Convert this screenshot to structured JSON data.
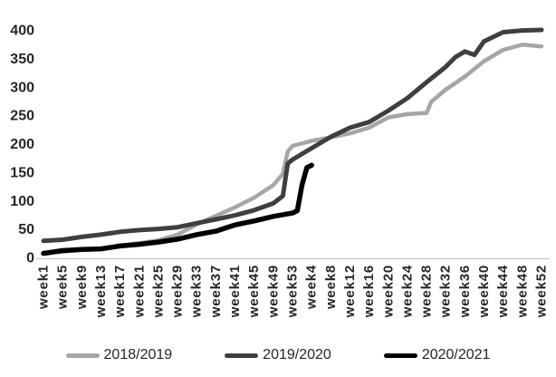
{
  "chart_data": {
    "type": "line",
    "title": "",
    "xlabel": "",
    "ylabel": "",
    "ylim": [
      0,
      400
    ],
    "y_tick_step": 50,
    "y_tick_labels": [
      "0",
      "50",
      "100",
      "150",
      "200",
      "250",
      "300",
      "350",
      "400"
    ],
    "x_tick_labels": [
      "week1",
      "week5",
      "week9",
      "week13",
      "week17",
      "week21",
      "week25",
      "week29",
      "week33",
      "week37",
      "week41",
      "week45",
      "week49",
      "week53",
      "week4",
      "week8",
      "week12",
      "week16",
      "week20",
      "week24",
      "week28",
      "week32",
      "week36",
      "week40",
      "week44",
      "week48",
      "week52"
    ],
    "x_tick_week_index": [
      1,
      5,
      9,
      13,
      17,
      21,
      25,
      29,
      33,
      37,
      41,
      45,
      49,
      53,
      57,
      61,
      65,
      69,
      73,
      77,
      81,
      85,
      89,
      93,
      97,
      101,
      105
    ],
    "x_note": "x = cumulative week number across two consecutive seasons; ticks every 4 weeks; second-season weeks resume at week4",
    "grid": false,
    "legend_position": "bottom",
    "axis_color": "#c9c9c9",
    "text_color": "#262626",
    "series": [
      {
        "name": "2018/2019",
        "color": "#a6a6a6",
        "stroke_width": 4.5,
        "week_index": [
          1,
          5,
          9,
          13,
          17,
          21,
          25,
          29,
          33,
          37,
          41,
          45,
          49,
          51,
          52,
          53,
          57,
          61,
          65,
          69,
          73,
          77,
          81,
          82,
          85,
          89,
          93,
          97,
          101,
          105
        ],
        "values": [
          8,
          10,
          13,
          15,
          20,
          25,
          30,
          40,
          58,
          73,
          88,
          105,
          127,
          147,
          186,
          196,
          205,
          211,
          218,
          228,
          246,
          252,
          254,
          274,
          295,
          318,
          345,
          365,
          374,
          371
        ]
      },
      {
        "name": "2019/2020",
        "color": "#3f3f3f",
        "stroke_width": 5,
        "week_index": [
          1,
          5,
          9,
          13,
          17,
          21,
          25,
          29,
          33,
          37,
          41,
          45,
          49,
          51,
          52,
          53,
          57,
          61,
          65,
          69,
          73,
          77,
          81,
          85,
          87,
          89,
          91,
          93,
          97,
          101,
          105
        ],
        "values": [
          29,
          31,
          36,
          40,
          45,
          48,
          50,
          53,
          60,
          67,
          74,
          83,
          95,
          108,
          165,
          172,
          192,
          212,
          228,
          238,
          258,
          280,
          308,
          335,
          352,
          362,
          356,
          380,
          396,
          399,
          400
        ]
      },
      {
        "name": "2020/2021",
        "color": "#000000",
        "stroke_width": 5.5,
        "week_index": [
          1,
          5,
          9,
          13,
          17,
          21,
          25,
          29,
          33,
          37,
          41,
          45,
          49,
          53,
          54,
          55,
          56,
          57
        ],
        "values": [
          7,
          12,
          14,
          15,
          20,
          23,
          27,
          32,
          40,
          46,
          57,
          64,
          72,
          78,
          82,
          128,
          158,
          162
        ]
      }
    ]
  }
}
